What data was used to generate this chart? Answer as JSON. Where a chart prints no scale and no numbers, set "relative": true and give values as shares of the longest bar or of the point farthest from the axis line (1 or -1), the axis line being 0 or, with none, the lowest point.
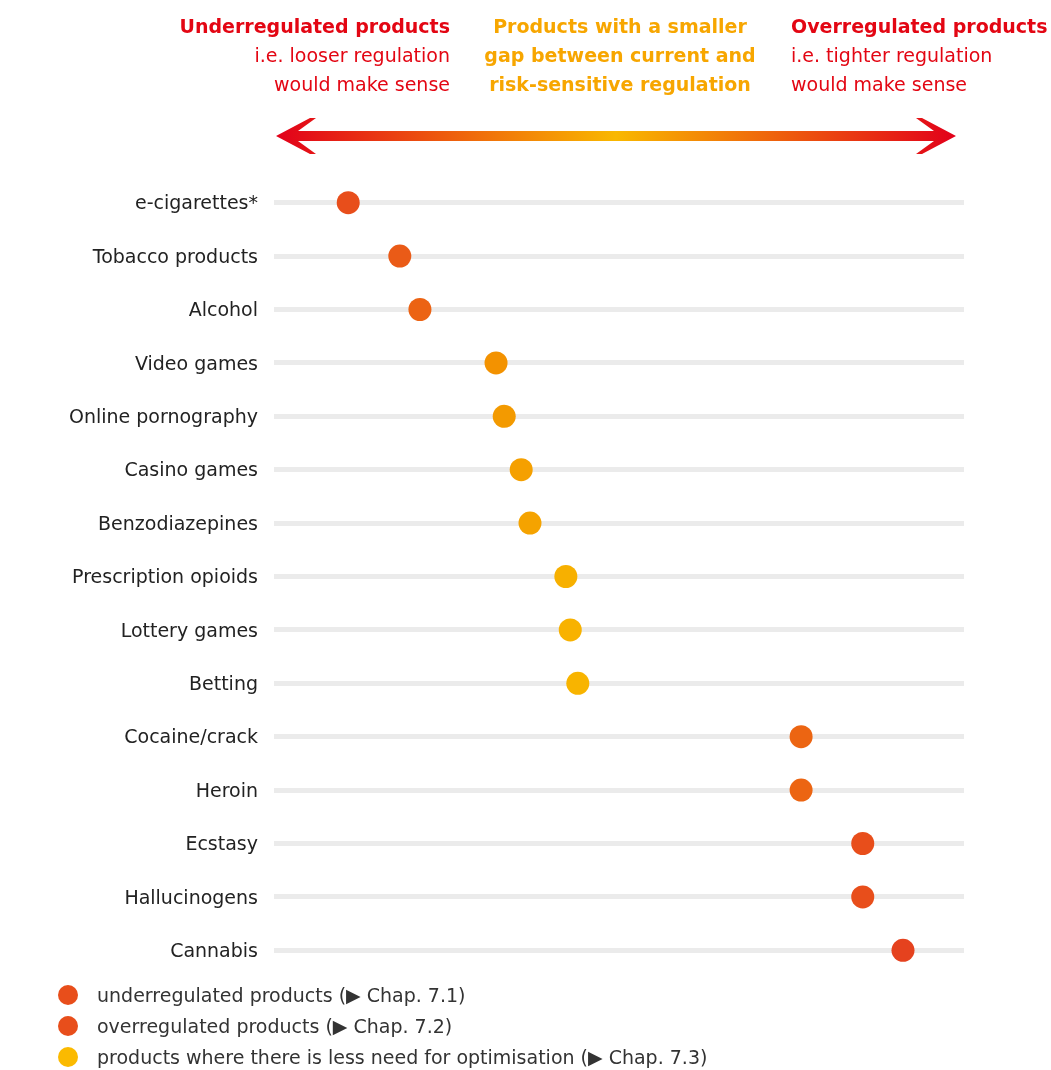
{
  "chart_data": {
    "type": "scatter",
    "orientation": "horizontal",
    "relative": true,
    "marker": "circle",
    "grid": "y",
    "legend": "bottom",
    "annotations": [
      "Underregulated products",
      "i.e. looser regulation\nwould make sense",
      "Products with a smaller\ngap between current and\nrisk-sensitive regulation",
      "Overregulated products",
      "i.e. tighter regulation\nwould make sense"
    ],
    "categories": [
      "e-cigarettes*",
      "Tobacco products",
      "Alcohol",
      "Video games",
      "Online pornography",
      "Casino games",
      "Benzodiazepines",
      "Prescription opioids",
      "Lottery games",
      "Betting",
      "Cocaine/crack",
      "Heroin",
      "Ecstasy",
      "Hallucinogens",
      "Cannabis"
    ],
    "series": [
      {
        "name": "underregulated products (▶ Chap. 7.1)",
        "color": "#e84e1b",
        "values": [
          0.118,
          0.2,
          0.232,
          null,
          null,
          null,
          null,
          null,
          null,
          null,
          null,
          null,
          null,
          null,
          null
        ],
        "colors": [
          "#e84e1b",
          "#ea5b17",
          "#ec6313",
          null,
          null,
          null,
          null,
          null,
          null,
          null,
          null,
          null,
          null,
          null,
          null
        ]
      },
      {
        "name": "overregulated products (▶ Chap. 7.2)",
        "color": "#e84e1b",
        "values": [
          null,
          null,
          null,
          null,
          null,
          null,
          null,
          null,
          null,
          null,
          0.838,
          0.838,
          0.936,
          0.936,
          1
        ],
        "colors": [
          null,
          null,
          null,
          null,
          null,
          null,
          null,
          null,
          null,
          null,
          "#ec6512",
          "#ec6512",
          "#e84e1b",
          "#e84e1b",
          "#e5421e"
        ]
      },
      {
        "name": "products where there is less need for optimisation (▶ Chap. 7.3)",
        "color": "#fbba00",
        "values": [
          null,
          null,
          null,
          0.353,
          0.366,
          0.393,
          0.407,
          0.464,
          0.471,
          0.483,
          null,
          null,
          null,
          null,
          null
        ],
        "colors": [
          null,
          null,
          null,
          "#f39200",
          "#f39a00",
          "#f5a000",
          "#f5a300",
          "#f7b000",
          "#f8b200",
          "#f8b400",
          null,
          null,
          null,
          null,
          null
        ]
      }
    ]
  }
}
